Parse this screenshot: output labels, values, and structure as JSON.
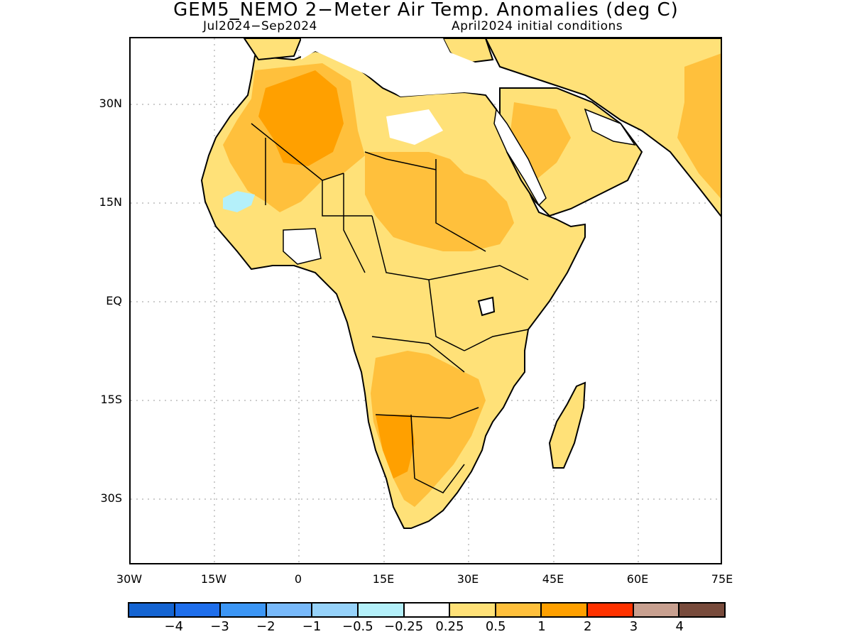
{
  "title": "GEM5_NEMO 2−Meter Air Temp. Anomalies (deg C)",
  "subtitle_left": "Jul2024−Sep2024",
  "subtitle_right": "April2024 initial conditions",
  "lat_labels": [
    "30N",
    "15N",
    "EQ",
    "15S",
    "30S"
  ],
  "lon_labels": [
    "30W",
    "15W",
    "0",
    "15E",
    "30E",
    "45E",
    "60E",
    "75E"
  ],
  "colorbar": {
    "colors": [
      "#1464d2",
      "#1e6eeb",
      "#3c96f5",
      "#78b9fa",
      "#96d2fa",
      "#b4f0fa",
      "#ffffff",
      "#ffe178",
      "#ffc03c",
      "#ffa000",
      "#ff3200",
      "#c8a090",
      "#784b3c"
    ],
    "labels": [
      "−4",
      "−3",
      "−2",
      "−1",
      "−0.5",
      "−0.25",
      "0.25",
      "0.5",
      "1",
      "2",
      "3",
      "4"
    ]
  },
  "map": {
    "region": "Africa and Middle East",
    "lat_range": [
      -40,
      40
    ],
    "lon_range": [
      -30,
      75
    ],
    "anomaly_levels": {
      "sahara_interior": "1",
      "north_africa_coast": "0.5",
      "west_africa_coast": "0.25",
      "central_africa": "0.5",
      "southern_africa": "1",
      "arabian_peninsula": "0.5",
      "madagascar": "0.5",
      "senegal_mauritania_spot": "−0.25"
    }
  }
}
